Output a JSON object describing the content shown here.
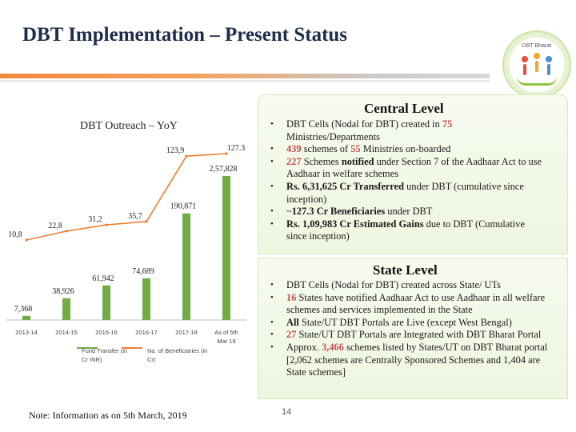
{
  "slide": {
    "title": "DBT Implementation – Present Status",
    "logo_text": "DBT Bharat",
    "note": "Note: Information as on 5th March, 2019",
    "page_number": "14"
  },
  "central": {
    "heading": "Central Level",
    "bullets": [
      {
        "pre": "DBT Cells (Nodal for DBT) created in ",
        "hl": "75",
        "post": " Ministries/Departments"
      },
      {
        "hl": "439",
        "mid": " schemes of ",
        "hl2": "55",
        "post": " Ministries on-boarded"
      },
      {
        "hl": "227",
        "mid": " Schemes ",
        "b": "notified",
        "post": " under Section 7 of the Aadhaar Act to use Aadhaar in welfare schemes"
      },
      {
        "b": "Rs. 6,31,625 Cr Transferred",
        "post": " under DBT (cumulative since inception)"
      },
      {
        "pre": "~",
        "b": "127.3 Cr Beneficiaries",
        "post": " under DBT"
      },
      {
        "b": "Rs. 1,09,983 Cr Estimated Gains",
        "post": " due to DBT (Cumulative since inception)"
      }
    ]
  },
  "state": {
    "heading": "State Level",
    "bullets": [
      {
        "pre": "DBT Cells (Nodal for DBT) created across State/ UTs"
      },
      {
        "hl": "16",
        "post": " States have notified Aadhaar Act to use Aadhaar in all welfare schemes and services implemented in the State"
      },
      {
        "b": "All",
        "post": " State/UT DBT Portals are Live (except West Bengal)"
      },
      {
        "hl": "27",
        "post": " State/UT DBT Portals are Integrated with DBT Bharat Portal"
      },
      {
        "pre": "Approx. ",
        "hl": "3,466",
        "post": " schemes listed by States/UT on DBT Bharat portal [2,062 schemes are Centrally Sponsored Schemes and 1,404 are State schemes]"
      }
    ]
  },
  "chart_data": {
    "type": "bar",
    "title": "DBT Outreach – YoY",
    "categories": [
      "2013-14",
      "2014-15",
      "2015-16",
      "2016-17",
      "2017-18",
      "As of 5th Mar 19"
    ],
    "series": [
      {
        "name": "Fund Transfer (in Cr INR)",
        "values": [
          7368,
          38926,
          61942,
          74689,
          190871,
          257828
        ],
        "labels": [
          "7,368",
          "38,926",
          "61,942",
          "74,689",
          "190,871",
          "2,57,828"
        ],
        "color": "#70ad47"
      },
      {
        "name": "No. of Beneficiaries (in Cr)",
        "values": [
          10.8,
          22.8,
          31.2,
          35.7,
          123.9,
          127.3
        ],
        "labels": [
          "10,8",
          "22,8",
          "31,2",
          "35,7",
          "123,9",
          "127.3"
        ],
        "color": "#ed7d31"
      }
    ],
    "colors": {
      "bar": "#70ad47",
      "line": "#ed7d31"
    }
  }
}
